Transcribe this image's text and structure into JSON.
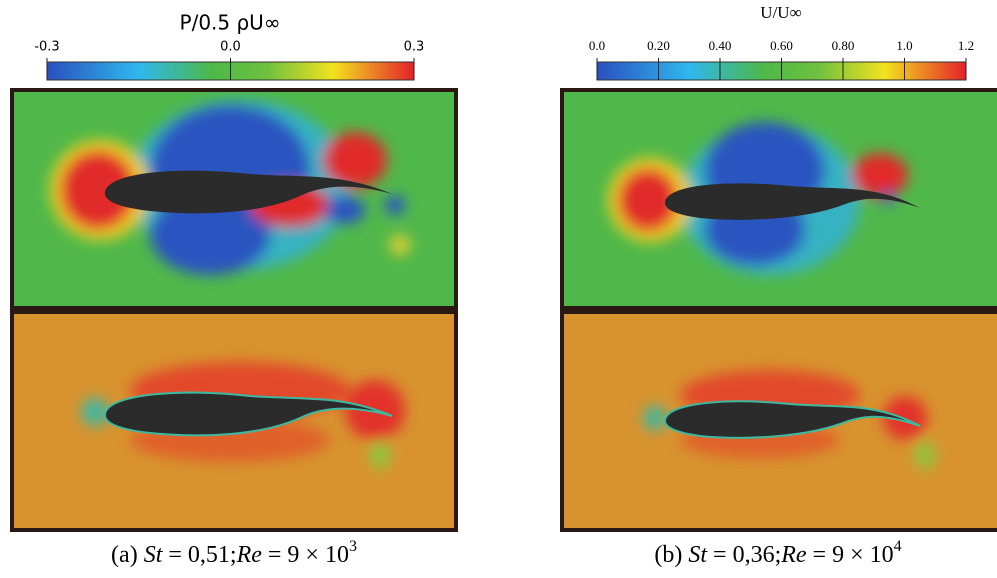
{
  "panels": [
    {
      "colorbar": {
        "title": "P/0.5 ρU∞",
        "lim": [
          -0.3,
          0.3
        ],
        "ticks": [
          -0.3,
          {
            "value": 0,
            "label": "0.0"
          },
          0.3
        ]
      },
      "caption": {
        "label": "(a)",
        "st_symbol": "St",
        "st_value": "= 0,51;",
        "re_symbol": "Re",
        "re_value": "= 9 × 10",
        "exponent": "3"
      }
    },
    {
      "colorbar": {
        "title": "U/U∞",
        "lim": [
          0,
          1.2
        ],
        "ticks": [
          {
            "value": 0,
            "label": "0.0"
          },
          {
            "value": 0.2,
            "label": "0.20"
          },
          {
            "value": 0.4,
            "label": "0.40"
          },
          {
            "value": 0.6,
            "label": "0.60"
          },
          {
            "value": 0.8,
            "label": "0.80"
          },
          {
            "value": 1,
            "label": "1.0"
          },
          1.2
        ]
      },
      "caption": {
        "label": "(b)",
        "st_symbol": "St",
        "st_value": "= 0,36;",
        "re_symbol": "Re",
        "re_value": "= 9 × 10",
        "exponent": "4"
      }
    }
  ]
}
